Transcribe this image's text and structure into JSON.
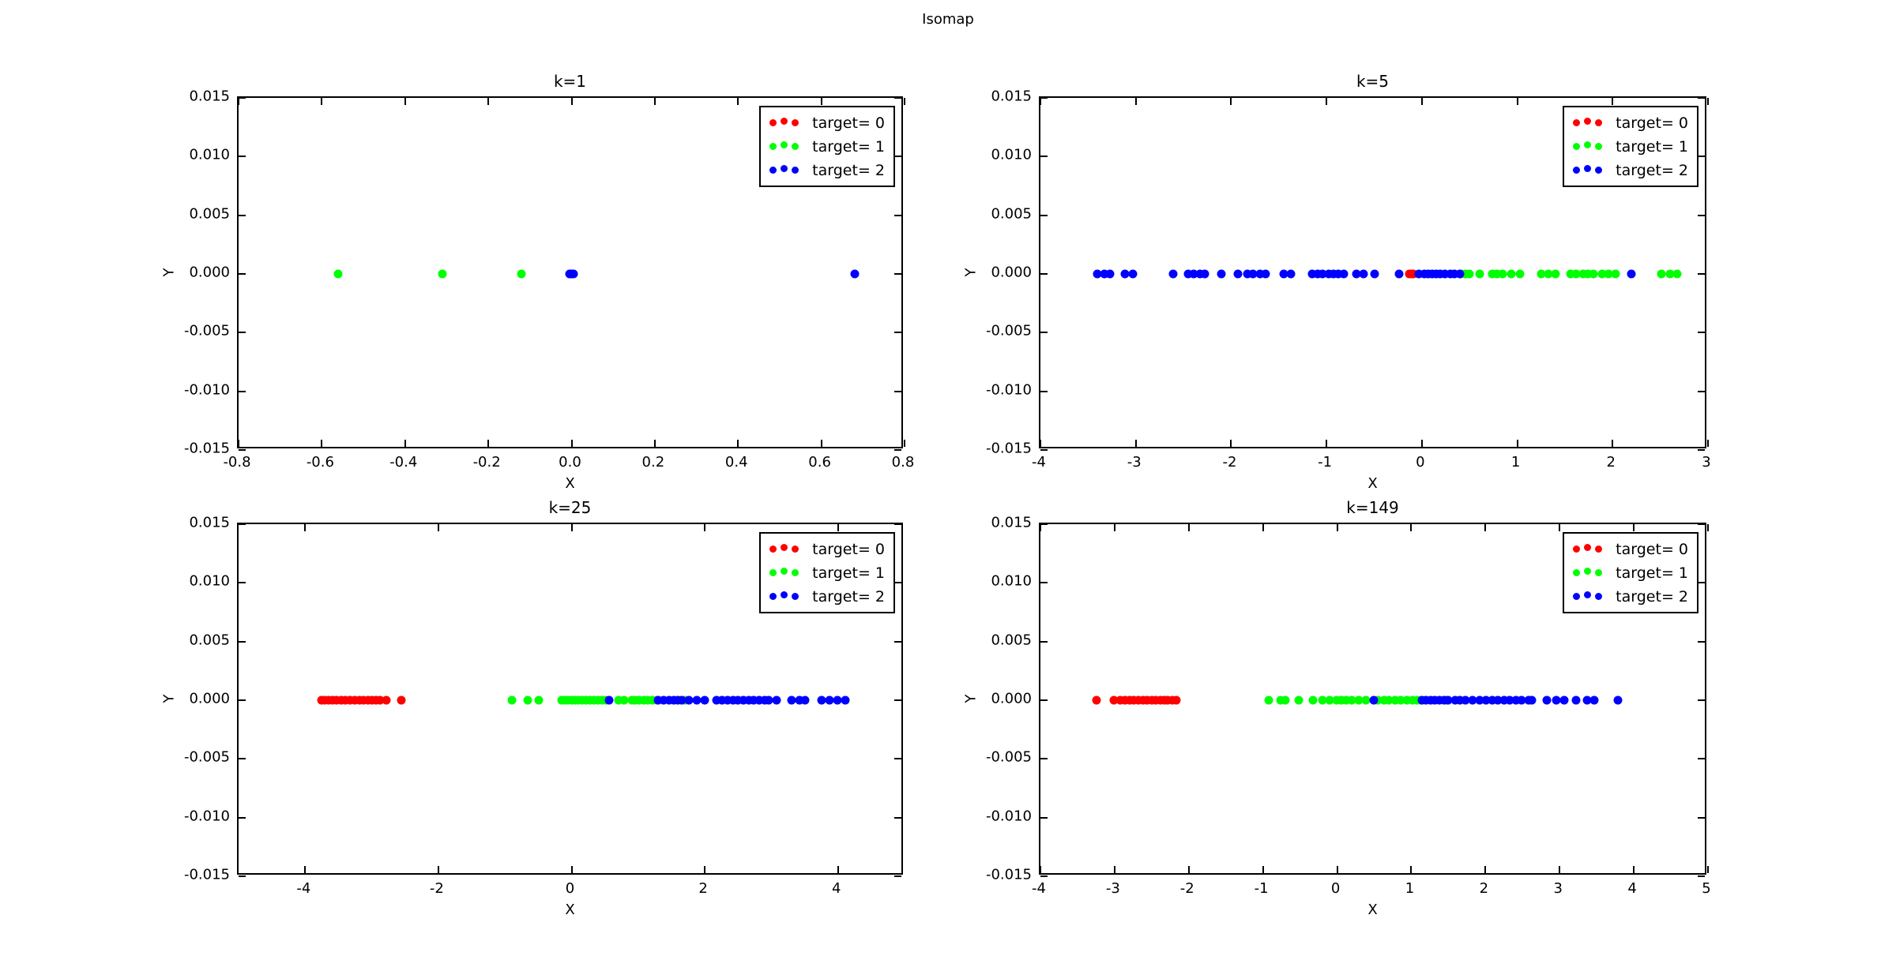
{
  "figure": {
    "suptitle": "Isomap",
    "background_color": "#ffffff",
    "text_color": "#000000"
  },
  "chart_data": [
    {
      "type": "scatter",
      "title": "k=1",
      "xlabel": "X",
      "ylabel": "Y",
      "xlim": [
        -0.8,
        0.8
      ],
      "ylim": [
        -0.015,
        0.015
      ],
      "xticks": [
        "-0.8",
        "-0.6",
        "-0.4",
        "-0.2",
        "0.0",
        "0.2",
        "0.4",
        "0.6",
        "0.8"
      ],
      "yticks": [
        "0.015",
        "0.010",
        "0.005",
        "0.000",
        "-0.005",
        "-0.010",
        "-0.015"
      ],
      "grid": false,
      "legend_position": "upper right",
      "y_value": 0.0,
      "series": [
        {
          "name": "target= 0",
          "color": "#ff0000",
          "x": []
        },
        {
          "name": "target= 1",
          "color": "#00ff00",
          "x": [
            -0.56,
            -0.31,
            -0.12
          ]
        },
        {
          "name": "target= 2",
          "color": "#0000ff",
          "x": [
            -0.005,
            -0.002,
            0.001,
            0.004,
            0.68
          ]
        }
      ]
    },
    {
      "type": "scatter",
      "title": "k=5",
      "xlabel": "X",
      "ylabel": "Y",
      "xlim": [
        -4,
        3
      ],
      "ylim": [
        -0.015,
        0.015
      ],
      "xticks": [
        "-4",
        "-3",
        "-2",
        "-1",
        "0",
        "1",
        "2",
        "3"
      ],
      "yticks": [
        "0.015",
        "0.010",
        "0.005",
        "0.000",
        "-0.005",
        "-0.010",
        "-0.015"
      ],
      "grid": false,
      "legend_position": "upper right",
      "y_value": 0.0,
      "series": [
        {
          "name": "target= 0",
          "color": "#ff0000",
          "x": [
            -0.13,
            -0.11,
            -0.09
          ]
        },
        {
          "name": "target= 1",
          "color": "#00ff00",
          "x": [
            0.41,
            0.46,
            0.5,
            0.61,
            0.74,
            0.79,
            0.85,
            0.94,
            1.03,
            1.25,
            1.33,
            1.4,
            1.56,
            1.62,
            1.69,
            1.74,
            1.8,
            1.89,
            1.96,
            2.03,
            2.51,
            2.6,
            2.68
          ]
        },
        {
          "name": "target= 2",
          "color": "#0000ff",
          "x": [
            -3.4,
            -3.33,
            -3.27,
            -3.11,
            -3.03,
            -2.61,
            -2.45,
            -2.39,
            -2.33,
            -2.28,
            -2.1,
            -1.93,
            -1.83,
            -1.77,
            -1.7,
            -1.64,
            -1.45,
            -1.37,
            -1.15,
            -1.09,
            -1.04,
            -0.98,
            -0.93,
            -0.88,
            -0.82,
            -0.69,
            -0.61,
            -0.5,
            -0.24,
            -0.03,
            0.03,
            0.07,
            0.11,
            0.15,
            0.19,
            0.24,
            0.3,
            0.34,
            0.4,
            2.2
          ]
        }
      ]
    },
    {
      "type": "scatter",
      "title": "k=25",
      "xlabel": "X",
      "ylabel": "Y",
      "xlim": [
        -5,
        5
      ],
      "ylim": [
        -0.015,
        0.015
      ],
      "xticks": [
        "-4",
        "-2",
        "0",
        "2",
        "4"
      ],
      "yticks": [
        "0.015",
        "0.010",
        "0.005",
        "0.000",
        "-0.005",
        "-0.010",
        "-0.015"
      ],
      "grid": false,
      "legend_position": "upper right",
      "y_value": 0.0,
      "series": [
        {
          "name": "target= 0",
          "color": "#ff0000",
          "x": [
            -3.76,
            -3.71,
            -3.65,
            -3.59,
            -3.53,
            -3.46,
            -3.4,
            -3.33,
            -3.26,
            -3.19,
            -3.12,
            -3.06,
            -3.0,
            -2.94,
            -2.88,
            -2.78,
            -2.56
          ]
        },
        {
          "name": "target= 1",
          "color": "#00ff00",
          "x": [
            -0.9,
            -0.66,
            -0.49,
            -0.15,
            -0.1,
            -0.05,
            0.0,
            0.05,
            0.1,
            0.16,
            0.22,
            0.28,
            0.34,
            0.4,
            0.46,
            0.52,
            0.7,
            0.79,
            0.91,
            0.96,
            1.02,
            1.08,
            1.15,
            1.22,
            1.29,
            1.7
          ]
        },
        {
          "name": "target= 2",
          "color": "#0000ff",
          "x": [
            0.56,
            1.3,
            1.38,
            1.46,
            1.54,
            1.6,
            1.66,
            1.76,
            1.88,
            2.0,
            2.18,
            2.26,
            2.34,
            2.42,
            2.5,
            2.58,
            2.66,
            2.74,
            2.82,
            2.9,
            2.96,
            3.08,
            3.3,
            3.42,
            3.51,
            3.75,
            3.87,
            3.99,
            4.11
          ]
        }
      ]
    },
    {
      "type": "scatter",
      "title": "k=149",
      "xlabel": "X",
      "ylabel": "Y",
      "xlim": [
        -4,
        5
      ],
      "ylim": [
        -0.015,
        0.015
      ],
      "xticks": [
        "-4",
        "-3",
        "-2",
        "-1",
        "0",
        "1",
        "2",
        "3",
        "4",
        "5"
      ],
      "yticks": [
        "0.015",
        "0.010",
        "0.005",
        "0.000",
        "-0.005",
        "-0.010",
        "-0.015"
      ],
      "grid": false,
      "legend_position": "upper right",
      "y_value": 0.0,
      "series": [
        {
          "name": "target= 0",
          "color": "#ff0000",
          "x": [
            -3.24,
            -3.01,
            -2.92,
            -2.86,
            -2.8,
            -2.74,
            -2.68,
            -2.62,
            -2.56,
            -2.5,
            -2.44,
            -2.38,
            -2.33,
            -2.28,
            -2.22,
            -2.17
          ]
        },
        {
          "name": "target= 1",
          "color": "#00ff00",
          "x": [
            -0.92,
            -0.76,
            -0.7,
            -0.52,
            -0.33,
            -0.2,
            -0.1,
            -0.01,
            0.06,
            0.12,
            0.2,
            0.29,
            0.39,
            0.55,
            0.63,
            0.7,
            0.78,
            0.86,
            0.94,
            1.02,
            1.08,
            1.13,
            1.47
          ]
        },
        {
          "name": "target= 2",
          "color": "#0000ff",
          "x": [
            0.49,
            1.14,
            1.2,
            1.26,
            1.32,
            1.38,
            1.44,
            1.5,
            1.59,
            1.66,
            1.73,
            1.83,
            1.92,
            2.01,
            2.09,
            2.17,
            2.25,
            2.33,
            2.41,
            2.49,
            2.58,
            2.63,
            2.83,
            2.95,
            3.06,
            3.22,
            3.37,
            3.47,
            3.79
          ]
        }
      ]
    }
  ]
}
